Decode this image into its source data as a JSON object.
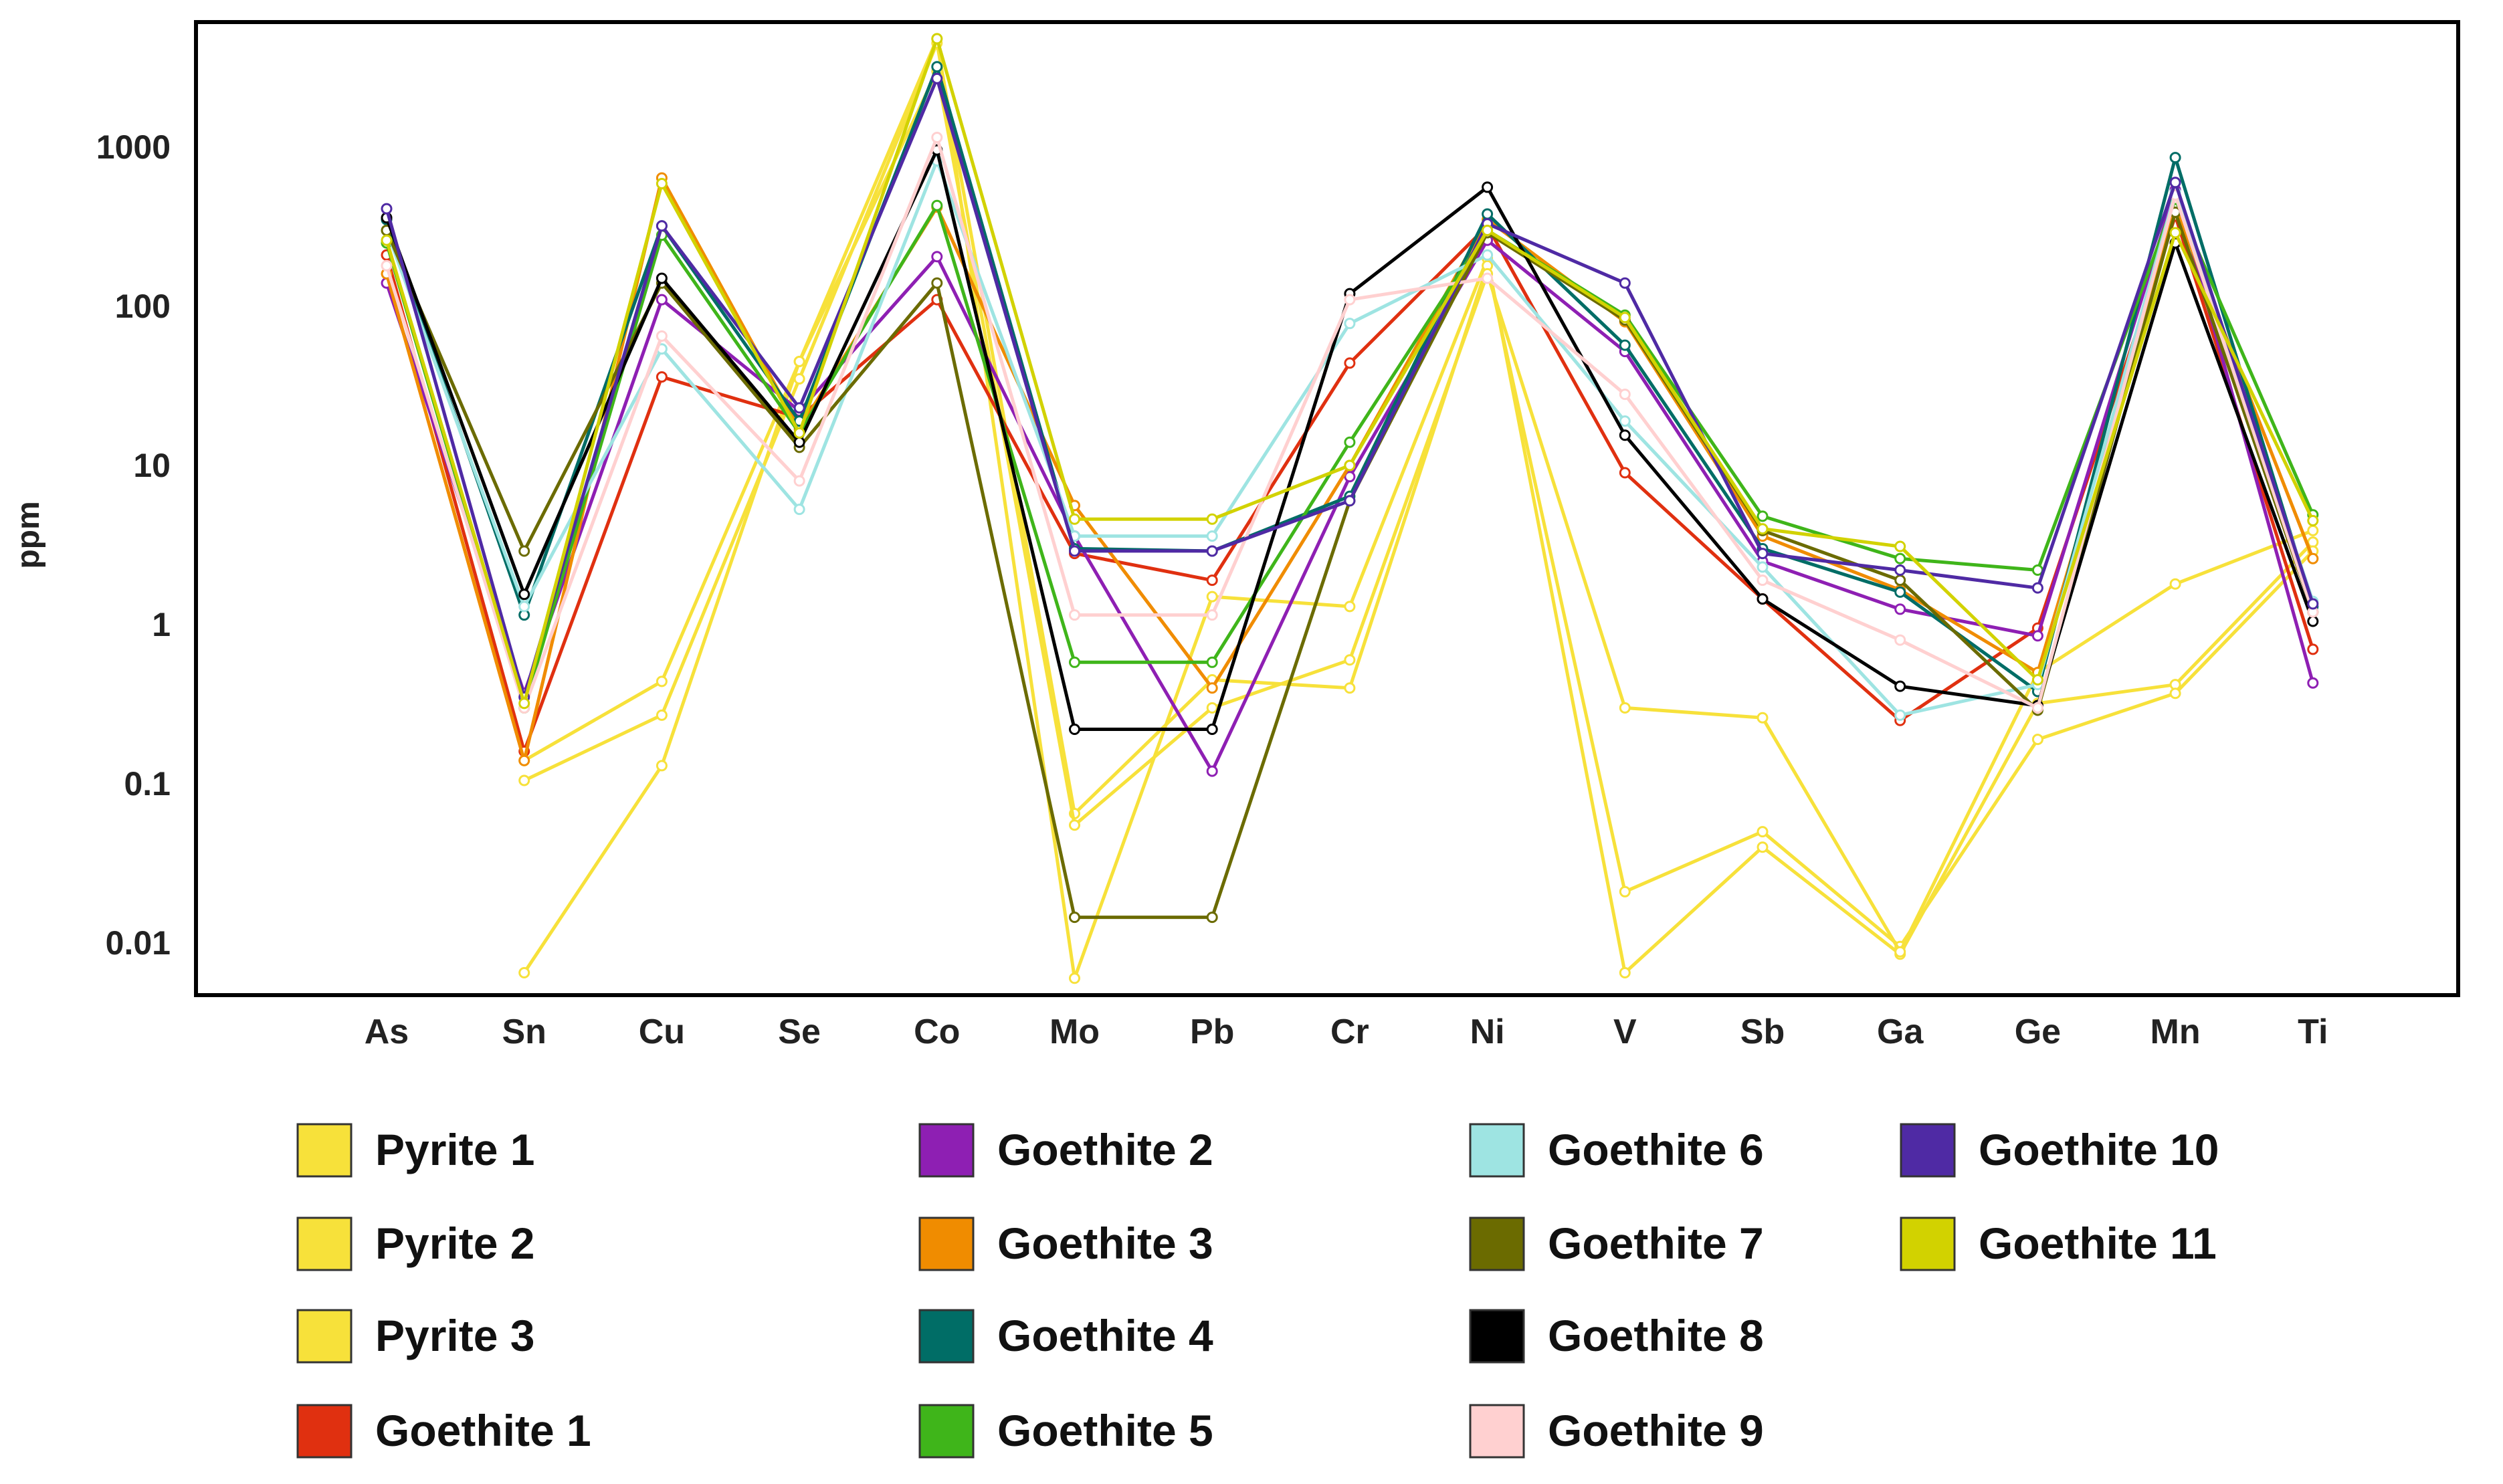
{
  "chart_data": {
    "type": "line",
    "title": "",
    "xlabel": "",
    "ylabel": "ppm",
    "yscale": "log",
    "ylim": [
      0.005,
      6000
    ],
    "yticks": [
      {
        "value": 1000,
        "label": "1000"
      },
      {
        "value": 100,
        "label": "100"
      },
      {
        "value": 10,
        "label": "10"
      },
      {
        "value": 1,
        "label": "1"
      },
      {
        "value": 0.1,
        "label": "0.1"
      },
      {
        "value": 0.01,
        "label": "0.01"
      }
    ],
    "categories": [
      "As",
      "Sn",
      "Cu",
      "Se",
      "Co",
      "Mo",
      "Pb",
      "Cr",
      "Ni",
      "V",
      "Sb",
      "Ga",
      "Ge",
      "Mn",
      "Ti"
    ],
    "grid": false,
    "legend_position": "bottom",
    "series": [
      {
        "name": "Pyrite 1",
        "color": "#f7e13a",
        "values": [
          null,
          0.0065,
          0.13,
          45,
          4800,
          0.006,
          1.5,
          1.3,
          200,
          0.0065,
          0.04,
          0.0085,
          0.32,
          0.42,
          3.3
        ]
      },
      {
        "name": "Pyrite 2",
        "color": "#f7e13a",
        "values": [
          null,
          0.105,
          0.27,
          35,
          4500,
          0.065,
          0.45,
          0.4,
          180,
          0.021,
          0.05,
          0.0095,
          0.19,
          0.37,
          2.9
        ]
      },
      {
        "name": "Pyrite 3",
        "color": "#f7e13a",
        "values": [
          null,
          0.14,
          0.44,
          45,
          3000,
          0.055,
          0.3,
          0.6,
          160,
          0.3,
          0.26,
          0.0088,
          0.5,
          1.8,
          3.9
        ]
      },
      {
        "name": "Goethite 1",
        "color": "#e03010",
        "values": [
          210,
          0.16,
          36,
          20,
          110,
          2.8,
          1.9,
          44,
          320,
          9,
          1.45,
          0.25,
          0.95,
          370,
          0.7
        ]
      },
      {
        "name": "Goethite 2",
        "color": "#8e1fb3",
        "values": [
          140,
          0.37,
          110,
          22,
          205,
          3.6,
          0.12,
          8.5,
          260,
          52,
          2.5,
          1.25,
          0.85,
          540,
          0.43
        ]
      },
      {
        "name": "Goethite 3",
        "color": "#f08c00",
        "values": [
          160,
          0.14,
          640,
          17,
          420,
          5.6,
          0.4,
          10,
          350,
          80,
          3.6,
          1.65,
          0.5,
          420,
          2.6
        ]
      },
      {
        "name": "Goethite 4",
        "color": "#006d66",
        "values": [
          350,
          1.15,
          320,
          19,
          3200,
          3.0,
          2.9,
          6.4,
          380,
          57,
          3.0,
          1.6,
          0.38,
          860,
          1.3
        ]
      },
      {
        "name": "Goethite 5",
        "color": "#3fb51a",
        "values": [
          250,
          0.3,
          280,
          16,
          430,
          0.58,
          0.58,
          14,
          300,
          88,
          4.8,
          2.6,
          2.2,
          470,
          4.9
        ]
      },
      {
        "name": "Goethite 6",
        "color": "#9ee4e2",
        "values": [
          300,
          1.3,
          54,
          5.3,
          820,
          3.6,
          3.6,
          78,
          210,
          19,
          2.3,
          0.27,
          0.42,
          520,
          1.4
        ]
      },
      {
        "name": "Goethite 7",
        "color": "#6b6b00",
        "values": [
          300,
          2.9,
          140,
          13,
          140,
          0.0145,
          0.0145,
          6.0,
          290,
          82,
          3.9,
          1.9,
          0.29,
          390,
          1.2
        ]
      },
      {
        "name": "Goethite 8",
        "color": "#000000",
        "values": [
          360,
          1.55,
          150,
          14,
          960,
          0.22,
          0.22,
          120,
          560,
          15.5,
          1.45,
          0.41,
          0.31,
          250,
          1.05
        ]
      },
      {
        "name": "Goethite 9",
        "color": "#ffd0d0",
        "values": [
          180,
          0.3,
          65,
          8,
          1150,
          1.15,
          1.15,
          110,
          150,
          28,
          1.9,
          0.8,
          0.3,
          500,
          1.2
        ]
      },
      {
        "name": "Goethite 10",
        "color": "#4f2aa4",
        "values": [
          410,
          0.35,
          320,
          23,
          2700,
          2.9,
          2.9,
          6.0,
          330,
          140,
          2.8,
          2.2,
          1.7,
          600,
          1.35
        ]
      },
      {
        "name": "Goethite 11",
        "color": "#d2d200",
        "values": [
          260,
          0.32,
          590,
          16,
          4800,
          4.6,
          4.6,
          10,
          300,
          85,
          4.0,
          3.1,
          0.45,
          290,
          4.5
        ]
      }
    ]
  }
}
